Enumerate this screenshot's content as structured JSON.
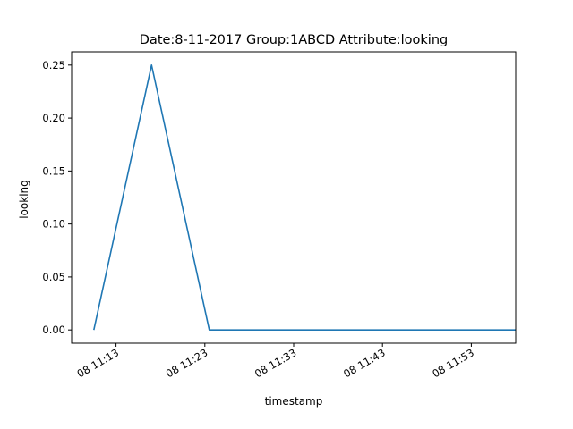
{
  "chart_data": {
    "type": "line",
    "title": "Date:8-11-2017  Group:1ABCD Attribute:looking",
    "xlabel": "timestamp",
    "ylabel": "looking",
    "x_ticks": [
      "08 11:13",
      "08 11:23",
      "08 11:33",
      "08 11:43",
      "08 11:53"
    ],
    "y_ticks": [
      "0.00",
      "0.05",
      "0.10",
      "0.15",
      "0.20",
      "0.25"
    ],
    "xlim": [
      "2017-11-08 11:08",
      "2017-11-08 11:58"
    ],
    "ylim": [
      -0.0125,
      0.2625
    ],
    "grid": false,
    "series": [
      {
        "color": "#1f77b4",
        "x": [
          "2017-11-08 11:10:30",
          "2017-11-08 11:17:00",
          "2017-11-08 11:23:30",
          "2017-11-08 11:58:00"
        ],
        "y": [
          0.0,
          0.25,
          0.0,
          0.0
        ]
      }
    ]
  }
}
